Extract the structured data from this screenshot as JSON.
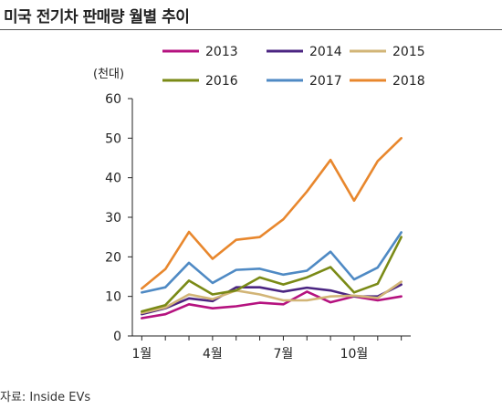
{
  "title": "미국 전기차 판매량 월별 추이",
  "unit_label": "(천대)",
  "source": "자료: Inside EVs",
  "chart_data": {
    "type": "line",
    "title": "미국 전기차 판매량 월별 추이",
    "ylabel": "(천대)",
    "xlabel": "",
    "x": [
      1,
      2,
      3,
      4,
      5,
      6,
      7,
      8,
      9,
      10,
      11,
      12
    ],
    "x_tick_labels": [
      {
        "x": 1,
        "label": "1월"
      },
      {
        "x": 4,
        "label": "4월"
      },
      {
        "x": 7,
        "label": "7월"
      },
      {
        "x": 10,
        "label": "10월"
      }
    ],
    "ylim": [
      0,
      60
    ],
    "y_ticks": [
      0,
      10,
      20,
      30,
      40,
      50,
      60
    ],
    "grid": false,
    "legend_position": "top",
    "series": [
      {
        "name": "2013",
        "color": "#b5127f",
        "values": [
          4.5,
          5.5,
          8,
          7,
          7.5,
          8.4,
          8,
          11.2,
          8.5,
          10,
          9,
          10
        ]
      },
      {
        "name": "2014",
        "color": "#4b2582",
        "values": [
          5.5,
          7,
          9.5,
          8.8,
          12.3,
          12.3,
          11.2,
          12.2,
          11.5,
          10,
          10,
          13
        ]
      },
      {
        "name": "2015",
        "color": "#d2b577",
        "values": [
          5.8,
          7.2,
          10.5,
          9.3,
          11.5,
          10.5,
          9,
          9,
          10,
          10.2,
          9.6,
          13.7
        ]
      },
      {
        "name": "2016",
        "color": "#7a8a16",
        "values": [
          6.2,
          7.8,
          14,
          10.5,
          11.5,
          14.8,
          13,
          14.8,
          17.4,
          11,
          13.2,
          25
        ]
      },
      {
        "name": "2017",
        "color": "#4f8ac4",
        "values": [
          11,
          12.3,
          18.5,
          13.4,
          16.7,
          17,
          15.5,
          16.5,
          21.3,
          14.3,
          17.3,
          26.2
        ]
      },
      {
        "name": "2018",
        "color": "#e8872d",
        "values": [
          12,
          16.9,
          26.3,
          19.5,
          24.3,
          25,
          29.5,
          36.5,
          44.5,
          34.2,
          44.2,
          50
        ]
      }
    ]
  }
}
